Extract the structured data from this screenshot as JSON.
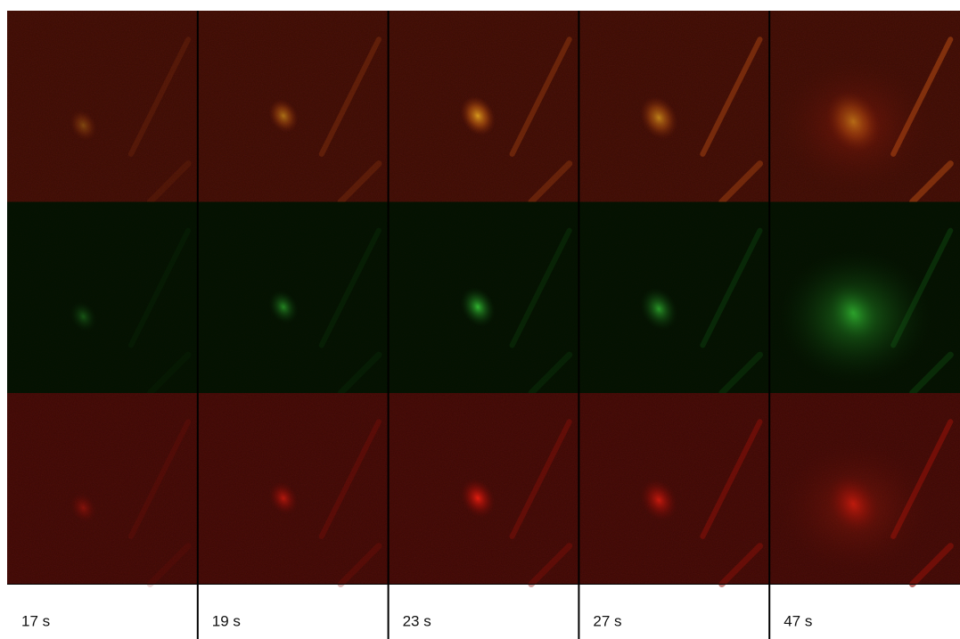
{
  "timepoints": [
    "17 s",
    "19 s",
    "23 s",
    "27 s",
    "47 s"
  ]
}
